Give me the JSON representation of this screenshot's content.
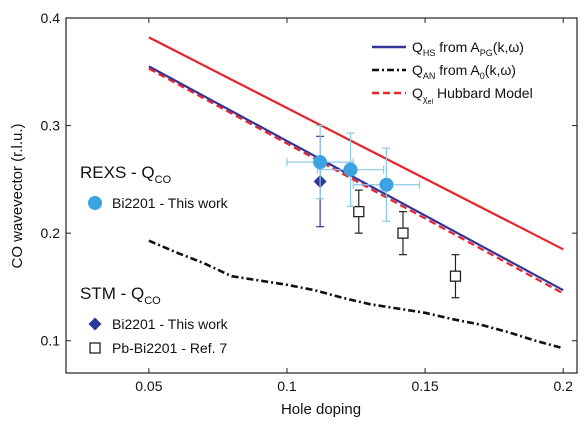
{
  "chart_data": {
    "type": "line",
    "xlabel": "Hole doping",
    "ylabel": "CO wavevector (r.l.u.)",
    "xlim": [
      0.02,
      0.205
    ],
    "ylim": [
      0.07,
      0.4
    ],
    "xticks": [
      0.05,
      0.1,
      0.15,
      0.2
    ],
    "yticks": [
      0.1,
      0.2,
      0.3,
      0.4
    ],
    "xtick_labels": [
      "0.05",
      "0.1",
      "0.15",
      "0.2"
    ],
    "ytick_labels": [
      "0.1",
      "0.2",
      "0.3",
      "0.4"
    ],
    "grid": false,
    "legend_position": "top-right",
    "lines": [
      {
        "key": "hs",
        "legend": {
          "main": "Q",
          "sub": "HS",
          "rest": " from A",
          "sub2": "PG",
          "tail": "(k,ω)"
        },
        "color": "#33339a",
        "dash": "solid",
        "x": [
          0.05,
          0.2
        ],
        "y": [
          0.355,
          0.147
        ]
      },
      {
        "key": "an",
        "legend": {
          "main": "Q",
          "sub": "AN",
          "rest": " from A",
          "sub2": "0",
          "tail": "(k,ω)"
        },
        "color": "#111111",
        "dash": "dashdot",
        "x": [
          0.05,
          0.06,
          0.07,
          0.08,
          0.09,
          0.1,
          0.11,
          0.12,
          0.13,
          0.14,
          0.15,
          0.16,
          0.17,
          0.18,
          0.19,
          0.2
        ],
        "y": [
          0.193,
          0.182,
          0.172,
          0.16,
          0.156,
          0.152,
          0.147,
          0.14,
          0.134,
          0.13,
          0.126,
          0.12,
          0.115,
          0.108,
          0.1,
          0.093
        ]
      },
      {
        "key": "hub",
        "legend": {
          "main": "Q",
          "sub": "χ",
          "rest": " Hubbard Model",
          "sub2": "el",
          "tail": ""
        },
        "color": "#e8232a",
        "dash": "dash",
        "x": [
          0.05,
          0.2
        ],
        "y": [
          0.353,
          0.144
        ]
      },
      {
        "key": "red",
        "legend": null,
        "color": "#e8232a",
        "dash": "solid",
        "x": [
          0.05,
          0.2
        ],
        "y": [
          0.382,
          0.185
        ]
      }
    ],
    "rexs": {
      "title": "REXS - Q",
      "title_sub": "CO",
      "series": [
        {
          "name": "Bi2201 - This work",
          "marker": "circle",
          "color": "#3ba3e0",
          "points": [
            {
              "x": 0.112,
              "y": 0.266,
              "xerr": 0.012,
              "yerr": 0.034
            },
            {
              "x": 0.123,
              "y": 0.259,
              "xerr": 0.012,
              "yerr": 0.034
            },
            {
              "x": 0.136,
              "y": 0.245,
              "xerr": 0.012,
              "yerr": 0.034
            }
          ]
        }
      ]
    },
    "stm": {
      "title": "STM - Q",
      "title_sub": "CO",
      "series": [
        {
          "name": "Bi2201 - This work",
          "marker": "diamond",
          "color": "#2c3896",
          "points": [
            {
              "x": 0.112,
              "y": 0.248,
              "xerr": 0.0,
              "yerr": 0.042
            }
          ]
        },
        {
          "name": "Pb-Bi2201 - Ref. 7",
          "marker": "square-open",
          "color": "#222222",
          "points": [
            {
              "x": 0.126,
              "y": 0.22,
              "xerr": 0.0,
              "yerr": 0.02
            },
            {
              "x": 0.142,
              "y": 0.2,
              "xerr": 0.0,
              "yerr": 0.02
            },
            {
              "x": 0.161,
              "y": 0.16,
              "xerr": 0.0,
              "yerr": 0.02
            }
          ]
        }
      ]
    }
  }
}
